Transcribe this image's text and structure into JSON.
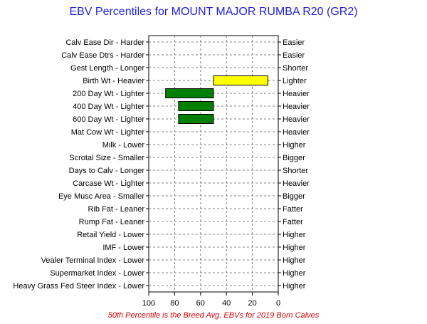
{
  "chart_data": {
    "type": "bar",
    "orientation": "horizontal-range",
    "title": "EBV Percentiles for MOUNT MAJOR RUMBA R20 (GR2)",
    "footnote": "50th Percentile is the Breed Avg. EBVs for 2019 Born Calves",
    "x_ticks": [
      "100",
      "80",
      "60",
      "40",
      "20",
      "0"
    ],
    "xlim": [
      100,
      0
    ],
    "grid": true,
    "categories": [
      {
        "left": "Calv Ease Dir - Harder",
        "right": "Easier"
      },
      {
        "left": "Calv Ease Dtrs - Harder",
        "right": "Easier"
      },
      {
        "left": "Gest Length - Longer",
        "right": "Shorter"
      },
      {
        "left": "Birth Wt - Heavier",
        "right": "Lighter"
      },
      {
        "left": "200 Day Wt - Lighter",
        "right": "Heavier"
      },
      {
        "left": "400 Day Wt - Lighter",
        "right": "Heavier"
      },
      {
        "left": "600 Day Wt - Lighter",
        "right": "Heavier"
      },
      {
        "left": "Mat Cow Wt - Lighter",
        "right": "Heavier"
      },
      {
        "left": "Milk - Lower",
        "right": "Higher"
      },
      {
        "left": "Scrotal Size - Smaller",
        "right": "Bigger"
      },
      {
        "left": "Days to Calv - Longer",
        "right": "Shorter"
      },
      {
        "left": "Carcase Wt - Lighter",
        "right": "Heavier"
      },
      {
        "left": "Eye Musc Area - Smaller",
        "right": "Bigger"
      },
      {
        "left": "Rib Fat - Leaner",
        "right": "Fatter"
      },
      {
        "left": "Rump Fat - Leaner",
        "right": "Fatter"
      },
      {
        "left": "Retail Yield - Lower",
        "right": "Higher"
      },
      {
        "left": "IMF - Lower",
        "right": "Higher"
      },
      {
        "left": "Vealer Terminal Index - Lower",
        "right": "Higher"
      },
      {
        "left": "Supermarket Index - Lower",
        "right": "Higher"
      },
      {
        "left": "Heavy Grass Fed Steer Index - Lower",
        "right": "Higher"
      }
    ],
    "bars": [
      {
        "category_index": 3,
        "from": 50,
        "to": 8,
        "color": "#ffff00"
      },
      {
        "category_index": 4,
        "from": 50,
        "to": 87,
        "color": "#008000"
      },
      {
        "category_index": 5,
        "from": 50,
        "to": 77,
        "color": "#008000"
      },
      {
        "category_index": 6,
        "from": 50,
        "to": 77,
        "color": "#008000"
      }
    ],
    "colors": {
      "title": "#1f1fe0",
      "footnote": "#e00000",
      "grid": "#808080"
    }
  }
}
